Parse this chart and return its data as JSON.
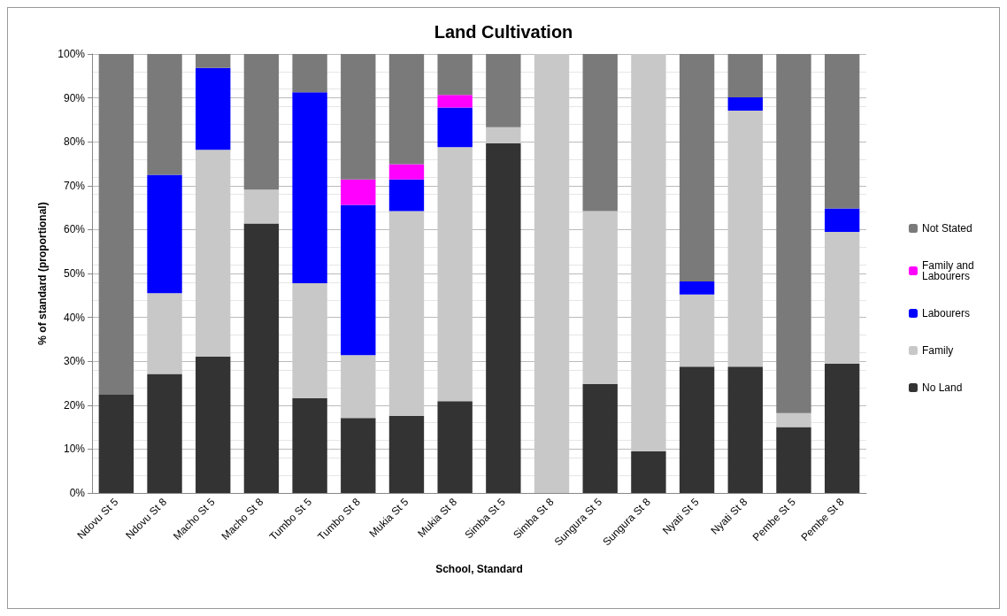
{
  "chart_data": {
    "type": "bar",
    "stacked": true,
    "title": "Land Cultivation",
    "xlabel": "School, Standard",
    "ylabel": "% of standard (proportional)",
    "categories": [
      "Ndovu St 5",
      "Ndovu St 8",
      "Macho St 5",
      "Macho St 8",
      "Tumbo St 5",
      "Tumbo St 8",
      "Mukia St 5",
      "Mukia St 8",
      "Simba St 5",
      "Simba St 8",
      "Sungura St 5",
      "Sungura St 8",
      "Nyati St 5",
      "Nyati St 8",
      "Pembe St 5",
      "Pembe St 8"
    ],
    "series": [
      {
        "name": "No Land",
        "color": "#333333",
        "values": [
          22.4,
          27.1,
          31.1,
          61.4,
          21.6,
          17.1,
          17.6,
          20.9,
          79.7,
          0,
          24.8,
          9.5,
          28.8,
          28.8,
          15.0,
          29.5
        ]
      },
      {
        "name": "Family",
        "color": "#c8c8c8",
        "values": [
          0,
          18.4,
          47.1,
          7.7,
          26.2,
          14.3,
          46.6,
          57.9,
          3.6,
          100,
          39.4,
          90.5,
          16.4,
          58.3,
          3.2,
          30.0
        ]
      },
      {
        "name": "Labourers",
        "color": "#0000ff",
        "values": [
          0,
          27.0,
          18.6,
          0,
          43.5,
          34.2,
          7.2,
          9.0,
          0,
          0,
          0,
          0,
          3.0,
          3.0,
          0,
          5.3
        ]
      },
      {
        "name": "Family and Labourers",
        "color": "#ff00ff",
        "values": [
          0,
          0,
          0,
          0,
          0,
          5.8,
          3.5,
          2.9,
          0,
          0,
          0,
          0,
          0,
          0,
          0,
          0
        ]
      },
      {
        "name": "Not Stated",
        "color": "#7a7a7a",
        "values": [
          77.6,
          27.5,
          3.2,
          30.9,
          8.7,
          28.6,
          25.1,
          9.3,
          16.7,
          0,
          35.8,
          0,
          51.8,
          9.9,
          81.8,
          35.2
        ]
      }
    ],
    "ylim": [
      0,
      100
    ],
    "yticks": [
      {
        "value": 0,
        "label": "0%"
      },
      {
        "value": 10,
        "label": "10%"
      },
      {
        "value": 20,
        "label": "20%"
      },
      {
        "value": 30,
        "label": "30%"
      },
      {
        "value": 40,
        "label": "40%"
      },
      {
        "value": 50,
        "label": "50%"
      },
      {
        "value": 60,
        "label": "60%"
      },
      {
        "value": 70,
        "label": "70%"
      },
      {
        "value": 80,
        "label": "80%"
      },
      {
        "value": 90,
        "label": "90%"
      },
      {
        "value": 100,
        "label": "100%"
      }
    ],
    "grid": "y",
    "legend": "right"
  }
}
